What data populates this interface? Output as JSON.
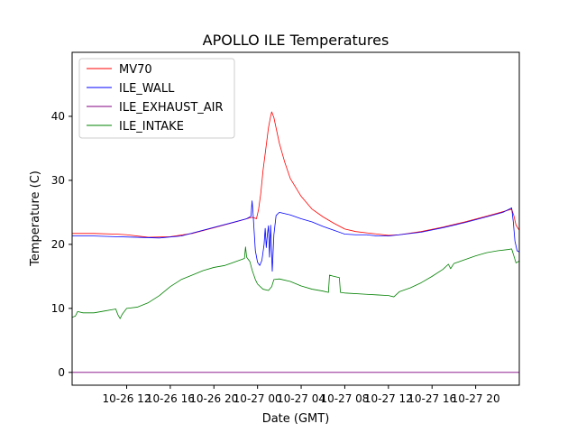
{
  "chart_data": {
    "type": "line",
    "title": "APOLLO ILE Temperatures",
    "xlabel": "Date (GMT)",
    "ylabel": "Temperature (C)",
    "xlim": [
      0,
      41
    ],
    "ylim": [
      -2,
      50
    ],
    "x_unit": "hours since 2019-10-26 07:00 GMT",
    "x_ticks": [
      {
        "x": 5,
        "label": "10-26 12"
      },
      {
        "x": 9,
        "label": "10-26 16"
      },
      {
        "x": 13,
        "label": "10-26 20"
      },
      {
        "x": 17,
        "label": "10-27 00"
      },
      {
        "x": 21,
        "label": "10-27 04"
      },
      {
        "x": 25,
        "label": "10-27 08"
      },
      {
        "x": 29,
        "label": "10-27 12"
      },
      {
        "x": 33,
        "label": "10-27 16"
      },
      {
        "x": 37,
        "label": "10-27 20"
      }
    ],
    "y_ticks": [
      0,
      10,
      20,
      30,
      40
    ],
    "legend_position": "upper-left",
    "series": [
      {
        "name": "MV70",
        "color": "#ff0000",
        "points": [
          [
            0,
            21.7
          ],
          [
            2,
            21.7
          ],
          [
            4,
            21.6
          ],
          [
            5,
            21.5
          ],
          [
            7,
            21.1
          ],
          [
            9,
            21.2
          ],
          [
            11,
            21.7
          ],
          [
            13,
            22.6
          ],
          [
            15,
            23.5
          ],
          [
            16.4,
            24.2
          ],
          [
            16.6,
            24.2
          ],
          [
            16.9,
            24.0
          ],
          [
            17.1,
            25.5
          ],
          [
            17.3,
            28.0
          ],
          [
            17.5,
            31.5
          ],
          [
            17.8,
            35.5
          ],
          [
            18.0,
            38.2
          ],
          [
            18.2,
            40.0
          ],
          [
            18.3,
            40.7
          ],
          [
            18.5,
            39.8
          ],
          [
            18.7,
            38.2
          ],
          [
            19.0,
            35.8
          ],
          [
            19.5,
            32.8
          ],
          [
            20.0,
            30.3
          ],
          [
            21,
            27.5
          ],
          [
            22,
            25.5
          ],
          [
            23,
            24.3
          ],
          [
            24,
            23.3
          ],
          [
            25,
            22.4
          ],
          [
            26,
            22.0
          ],
          [
            27,
            21.8
          ],
          [
            28,
            21.6
          ],
          [
            29,
            21.4
          ],
          [
            30,
            21.5
          ],
          [
            32,
            22.0
          ],
          [
            34,
            22.7
          ],
          [
            36,
            23.5
          ],
          [
            38,
            24.4
          ],
          [
            39.5,
            25.1
          ],
          [
            40.3,
            25.5
          ],
          [
            40.5,
            24.5
          ],
          [
            40.7,
            23.0
          ],
          [
            41,
            22.2
          ]
        ]
      },
      {
        "name": "ILE_WALL",
        "color": "#0000ff",
        "points": [
          [
            0,
            21.3
          ],
          [
            2,
            21.3
          ],
          [
            4,
            21.2
          ],
          [
            6,
            21.1
          ],
          [
            8,
            21.0
          ],
          [
            10,
            21.3
          ],
          [
            12,
            22.2
          ],
          [
            14,
            23.1
          ],
          [
            16,
            24.0
          ],
          [
            16.4,
            24.4
          ],
          [
            16.5,
            26.8
          ],
          [
            16.6,
            24.5
          ],
          [
            16.8,
            19.0
          ],
          [
            17.0,
            17.2
          ],
          [
            17.2,
            16.7
          ],
          [
            17.4,
            17.5
          ],
          [
            17.6,
            20.0
          ],
          [
            17.7,
            22.5
          ],
          [
            17.8,
            19.5
          ],
          [
            17.9,
            21.5
          ],
          [
            18.0,
            22.9
          ],
          [
            18.1,
            18.0
          ],
          [
            18.2,
            23.0
          ],
          [
            18.35,
            15.8
          ],
          [
            18.5,
            21.5
          ],
          [
            18.7,
            24.5
          ],
          [
            19.0,
            25.0
          ],
          [
            20,
            24.6
          ],
          [
            21,
            24.0
          ],
          [
            22,
            23.5
          ],
          [
            23,
            22.8
          ],
          [
            24,
            22.2
          ],
          [
            25,
            21.6
          ],
          [
            26,
            21.5
          ],
          [
            27,
            21.5
          ],
          [
            28,
            21.3
          ],
          [
            29,
            21.3
          ],
          [
            30,
            21.5
          ],
          [
            32,
            21.9
          ],
          [
            34,
            22.6
          ],
          [
            36,
            23.4
          ],
          [
            38,
            24.3
          ],
          [
            39.5,
            25.0
          ],
          [
            40.3,
            25.7
          ],
          [
            40.45,
            23.5
          ],
          [
            40.6,
            20.5
          ],
          [
            40.8,
            19.0
          ],
          [
            41,
            18.8
          ]
        ]
      },
      {
        "name": "ILE_EXHAUST_AIR",
        "color": "#800080",
        "points": [
          [
            0,
            0
          ],
          [
            41,
            0
          ]
        ]
      },
      {
        "name": "ILE_INTAKE",
        "color": "#008000",
        "points": [
          [
            0,
            8.6
          ],
          [
            0.3,
            8.8
          ],
          [
            0.5,
            9.5
          ],
          [
            1,
            9.3
          ],
          [
            2,
            9.3
          ],
          [
            3,
            9.6
          ],
          [
            4,
            9.9
          ],
          [
            4.2,
            9.0
          ],
          [
            4.4,
            8.4
          ],
          [
            4.6,
            9.1
          ],
          [
            5,
            10.0
          ],
          [
            6,
            10.2
          ],
          [
            7,
            10.9
          ],
          [
            8,
            12.0
          ],
          [
            9,
            13.4
          ],
          [
            10,
            14.5
          ],
          [
            11,
            15.2
          ],
          [
            12,
            15.9
          ],
          [
            13,
            16.4
          ],
          [
            14,
            16.7
          ],
          [
            15,
            17.3
          ],
          [
            15.8,
            17.8
          ],
          [
            15.9,
            19.6
          ],
          [
            16.0,
            18.0
          ],
          [
            16.3,
            17.3
          ],
          [
            16.5,
            16.0
          ],
          [
            16.8,
            14.5
          ],
          [
            17.0,
            13.8
          ],
          [
            17.5,
            13.0
          ],
          [
            18.0,
            12.8
          ],
          [
            18.3,
            13.4
          ],
          [
            18.5,
            14.5
          ],
          [
            19,
            14.6
          ],
          [
            20,
            14.2
          ],
          [
            21,
            13.5
          ],
          [
            22,
            13.0
          ],
          [
            23,
            12.7
          ],
          [
            23.5,
            12.5
          ],
          [
            23.6,
            15.2
          ],
          [
            24,
            15.0
          ],
          [
            24.5,
            14.8
          ],
          [
            24.6,
            12.5
          ],
          [
            25,
            12.4
          ],
          [
            27,
            12.2
          ],
          [
            28,
            12.1
          ],
          [
            29,
            12.0
          ],
          [
            29.5,
            11.8
          ],
          [
            30,
            12.6
          ],
          [
            31,
            13.2
          ],
          [
            32,
            14.0
          ],
          [
            33,
            15.0
          ],
          [
            34,
            16.1
          ],
          [
            34.5,
            16.9
          ],
          [
            34.7,
            16.2
          ],
          [
            35,
            17.0
          ],
          [
            36,
            17.6
          ],
          [
            37,
            18.2
          ],
          [
            38,
            18.7
          ],
          [
            39,
            19.0
          ],
          [
            40,
            19.2
          ],
          [
            40.3,
            19.3
          ],
          [
            40.5,
            18.2
          ],
          [
            40.7,
            17.1
          ],
          [
            41,
            17.4
          ]
        ]
      }
    ]
  }
}
